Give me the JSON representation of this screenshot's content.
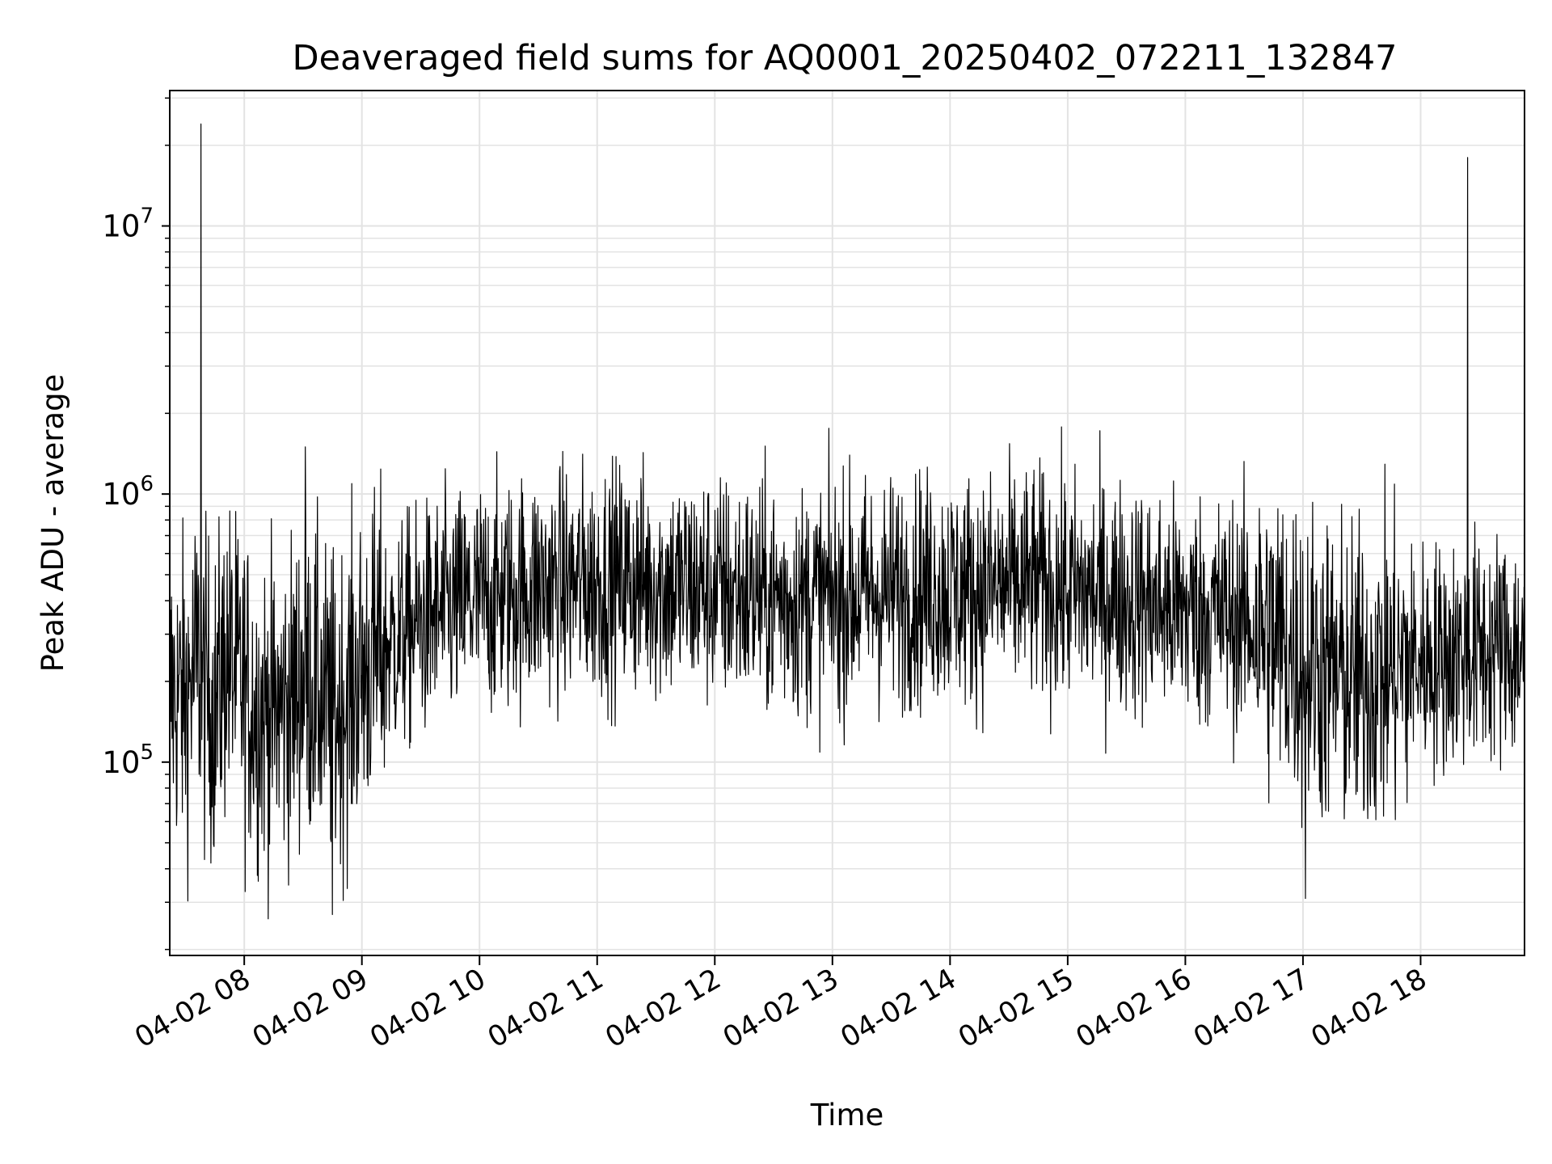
{
  "chart_data": {
    "type": "line",
    "title": "Deaveraged field sums for AQ0001_20250402_072211_132847",
    "xlabel": "Time",
    "ylabel": "Peak ADU - average",
    "x_range": [
      "04-02 07:22",
      "04-02 18:53"
    ],
    "y_scale": "log",
    "ylim": [
      19000,
      32000000
    ],
    "grid": true,
    "x_ticks": [
      "04-02 08",
      "04-02 09",
      "04-02 10",
      "04-02 11",
      "04-02 12",
      "04-02 13",
      "04-02 14",
      "04-02 15",
      "04-02 16",
      "04-02 17",
      "04-02 18"
    ],
    "y_ticks": [
      {
        "value": 100000,
        "base": "10",
        "exp": "5"
      },
      {
        "value": 1000000,
        "base": "10",
        "exp": "6"
      },
      {
        "value": 10000000,
        "base": "10",
        "exp": "7"
      }
    ],
    "series": [
      {
        "color": "#000000",
        "x_unit": "hour of day (04-02)",
        "x": [
          7.37,
          7.5,
          7.6,
          7.65,
          7.75,
          7.85,
          7.95,
          8.1,
          8.25,
          8.4,
          8.5,
          8.6,
          8.75,
          8.85,
          9.0,
          9.15,
          9.3,
          9.5,
          9.75,
          10.0,
          10.25,
          10.5,
          10.75,
          11.0,
          11.25,
          11.5,
          11.75,
          12.0,
          12.25,
          12.5,
          12.75,
          13.0,
          13.25,
          13.5,
          13.75,
          14.0,
          14.25,
          14.5,
          14.75,
          15.0,
          15.25,
          15.5,
          15.75,
          16.0,
          16.25,
          16.5,
          16.75,
          17.0,
          17.25,
          17.5,
          17.75,
          18.0,
          18.25,
          18.5,
          18.7,
          18.88
        ],
        "y": [
          180000,
          170000,
          240000,
          190000,
          160000,
          250000,
          200000,
          160000,
          150000,
          170000,
          210000,
          190000,
          150000,
          170000,
          220000,
          260000,
          290000,
          330000,
          370000,
          400000,
          420000,
          450000,
          460000,
          470000,
          480000,
          460000,
          450000,
          440000,
          420000,
          410000,
          400000,
          410000,
          420000,
          430000,
          440000,
          440000,
          440000,
          450000,
          460000,
          430000,
          420000,
          410000,
          380000,
          370000,
          360000,
          340000,
          290000,
          250000,
          210000,
          200000,
          220000,
          240000,
          250000,
          260000,
          270000,
          260000
        ],
        "spikes": [
          {
            "x": 7.63,
            "y": 24000000
          },
          {
            "x": 8.52,
            "y": 1500000
          },
          {
            "x": 8.75,
            "y": 27000
          },
          {
            "x": 17.02,
            "y": 31000
          },
          {
            "x": 18.4,
            "y": 18000000
          }
        ]
      }
    ]
  }
}
